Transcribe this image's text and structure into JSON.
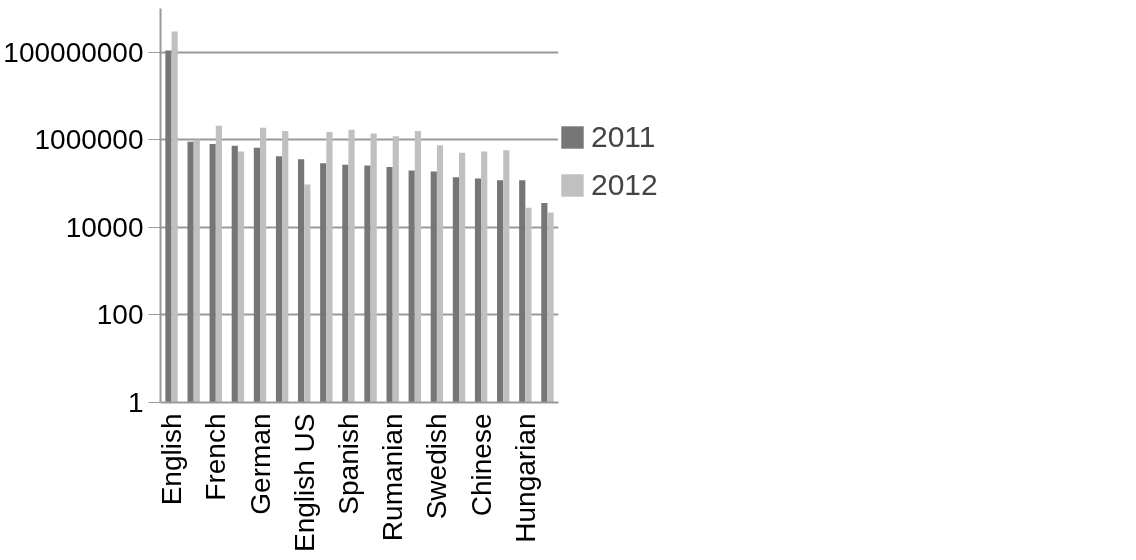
{
  "chart_data": {
    "type": "bar",
    "log": "y",
    "grid": "y",
    "legend": "right",
    "categories": [
      "English",
      null,
      "French",
      null,
      "German",
      null,
      "English US",
      null,
      "Spanish",
      null,
      "Rumanian",
      null,
      "Swedish",
      null,
      "Chinese",
      null,
      "Hungarian",
      null
    ],
    "series": [
      {
        "name": "2011",
        "color": "#767676",
        "values": [
          110000000,
          900000,
          800000,
          730000,
          660000,
          420000,
          360000,
          290000,
          270000,
          260000,
          240000,
          200000,
          190000,
          140000,
          130000,
          120000,
          120000,
          36000
        ]
      },
      {
        "name": "2012",
        "color": "#c0c0c0",
        "values": [
          300000000,
          1000000,
          2100000,
          540000,
          1900000,
          1600000,
          95000,
          1500000,
          1700000,
          1400000,
          1200000,
          1600000,
          750000,
          510000,
          540000,
          580000,
          28000,
          22000
        ]
      }
    ],
    "ylim": [
      1,
      1000000000
    ],
    "yticks": [
      1,
      100,
      10000,
      1000000,
      100000000
    ]
  }
}
